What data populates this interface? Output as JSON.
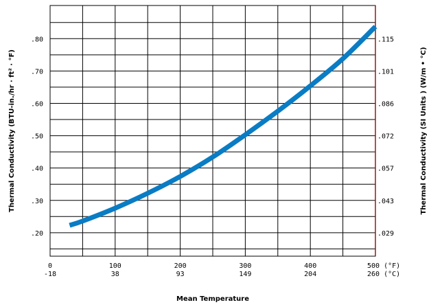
{
  "chart_data": {
    "type": "line",
    "xlabel": "Mean Temperature",
    "ylabel": "Thermal Conductivity  (BTU-in./hr · ft² · °F)",
    "ylabel_right": "Thermal Conductivity  (SI Units ) (W/m • °C)",
    "xlim": [
      0,
      500
    ],
    "ylim": [
      0.1275,
      0.9025
    ],
    "grid": true,
    "x_ticks": [
      0,
      100,
      200,
      300,
      400,
      500
    ],
    "x_tick_labels": [
      "0",
      "100",
      "200",
      "300",
      "400",
      "500 (°F)"
    ],
    "x_tick_labels_si": [
      "-18",
      "38",
      "93",
      "149",
      "204",
      "260 (°C)"
    ],
    "y_ticks": [
      0.2,
      0.3,
      0.4,
      0.5,
      0.6,
      0.7,
      0.8
    ],
    "y_tick_labels": [
      ".20",
      ".30",
      ".40",
      ".50",
      ".60",
      ".70",
      ".80"
    ],
    "y_tick_labels_right": [
      ".029",
      ".043",
      ".057",
      ".072",
      ".086",
      ".101",
      ".115"
    ],
    "series": [
      {
        "color": "#0a7cc4",
        "x": [
          30,
          50,
          100,
          150,
          200,
          250,
          300,
          350,
          400,
          450,
          500
        ],
        "y": [
          0.223,
          0.236,
          0.276,
          0.322,
          0.374,
          0.434,
          0.503,
          0.576,
          0.654,
          0.738,
          0.837
        ]
      }
    ]
  }
}
